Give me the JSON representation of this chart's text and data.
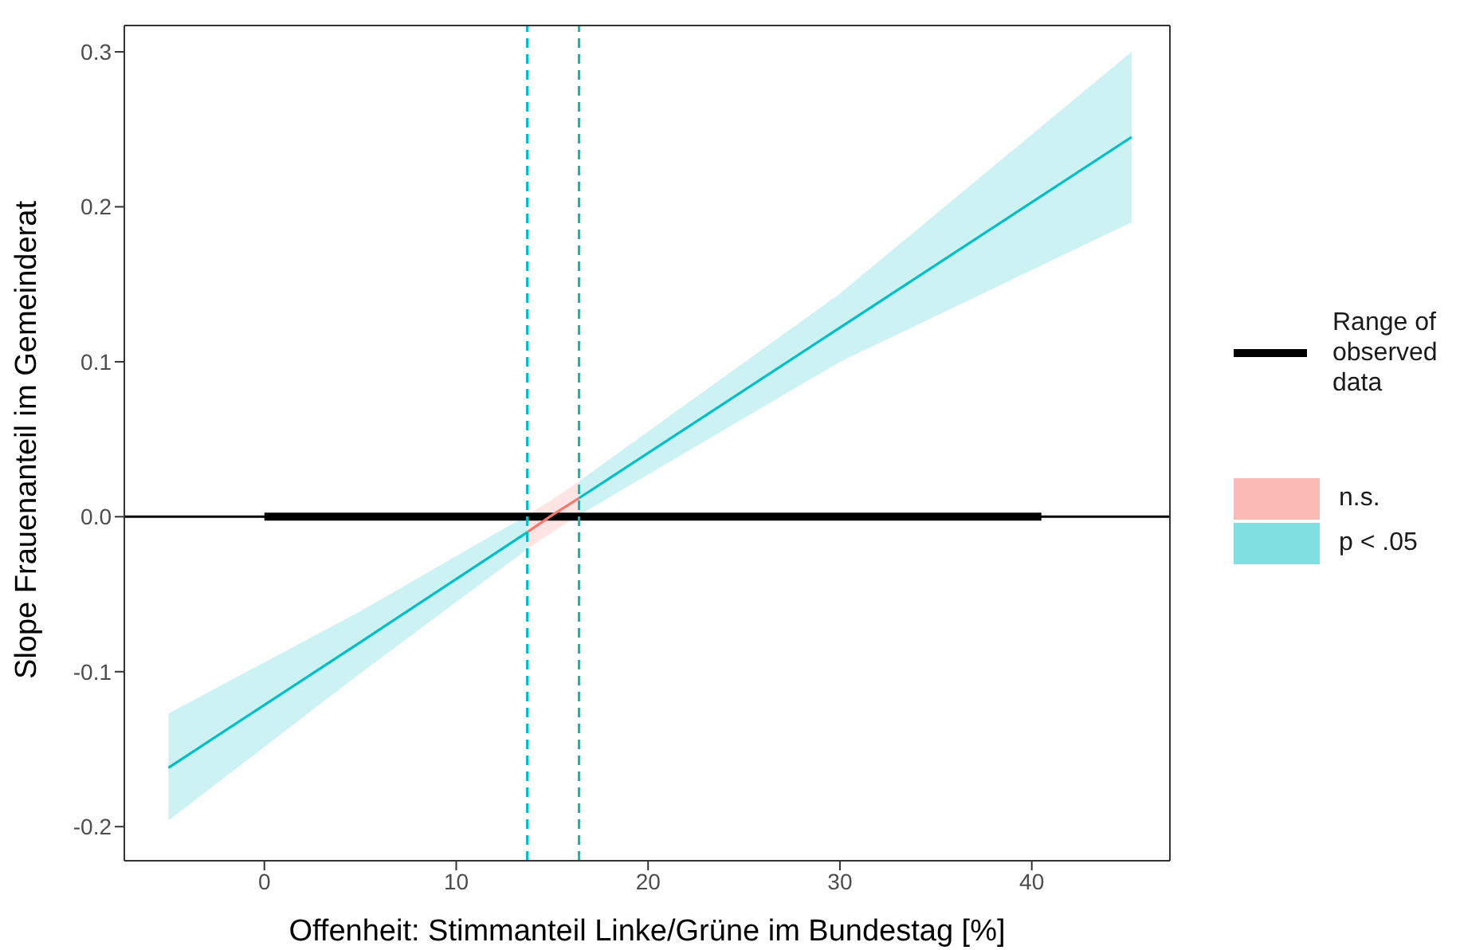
{
  "chart_data": {
    "type": "line",
    "xlabel": "Offenheit: Stimmanteil Linke/Grüne im Bundestag [%]",
    "ylabel": "Slope Frauenanteil im Gemeinderat",
    "xlim": [
      -7.3,
      47.2
    ],
    "xticks": [
      0,
      10,
      20,
      30,
      40
    ],
    "ylim": [
      -0.222,
      0.317
    ],
    "yticks": [
      {
        "value": -0.2,
        "label": "-0.2"
      },
      {
        "value": -0.1,
        "label": "-0.1"
      },
      {
        "value": 0,
        "label": "0.0"
      },
      0.1,
      0.2,
      0.3
    ],
    "grid": false,
    "legend": "right",
    "line_style": "solid",
    "marker": "none",
    "series": [
      {
        "name": "Range of observed data",
        "color": "#000000",
        "x": [
          0,
          40.5
        ],
        "values": [
          0,
          0
        ]
      },
      {
        "name": "n.s.",
        "color": "#f8766d",
        "x": [
          13.7,
          15,
          16.4
        ],
        "values": [
          -0.01,
          0.001,
          0.012
        ],
        "lower": [
          -0.021,
          -0.01,
          0.001
        ],
        "upper": [
          0.001,
          0.011,
          0.023
        ]
      },
      {
        "name": "p < .05",
        "color": "#00bfc4",
        "x": [
          -5,
          5,
          13.7,
          15,
          16.4,
          30,
          45.2
        ],
        "values": [
          -0.162,
          -0.081,
          -0.01,
          null,
          0.012,
          0.122,
          0.245
        ],
        "lower": [
          -0.196,
          -0.101,
          -0.021,
          null,
          0.001,
          0.1,
          0.19
        ],
        "upper": [
          -0.127,
          -0.061,
          0.001,
          null,
          0.023,
          0.144,
          0.3
        ]
      }
    ],
    "ref_lines": [
      {
        "axis": "y",
        "value": 0,
        "color": "#000000",
        "line_style": "solid"
      },
      {
        "axis": "x",
        "value": 13.7,
        "color": "#00bfc4",
        "line_style": "dashed"
      },
      {
        "axis": "x",
        "value": 16.4,
        "color": "#00bfc4",
        "line_style": "dashed"
      }
    ]
  }
}
